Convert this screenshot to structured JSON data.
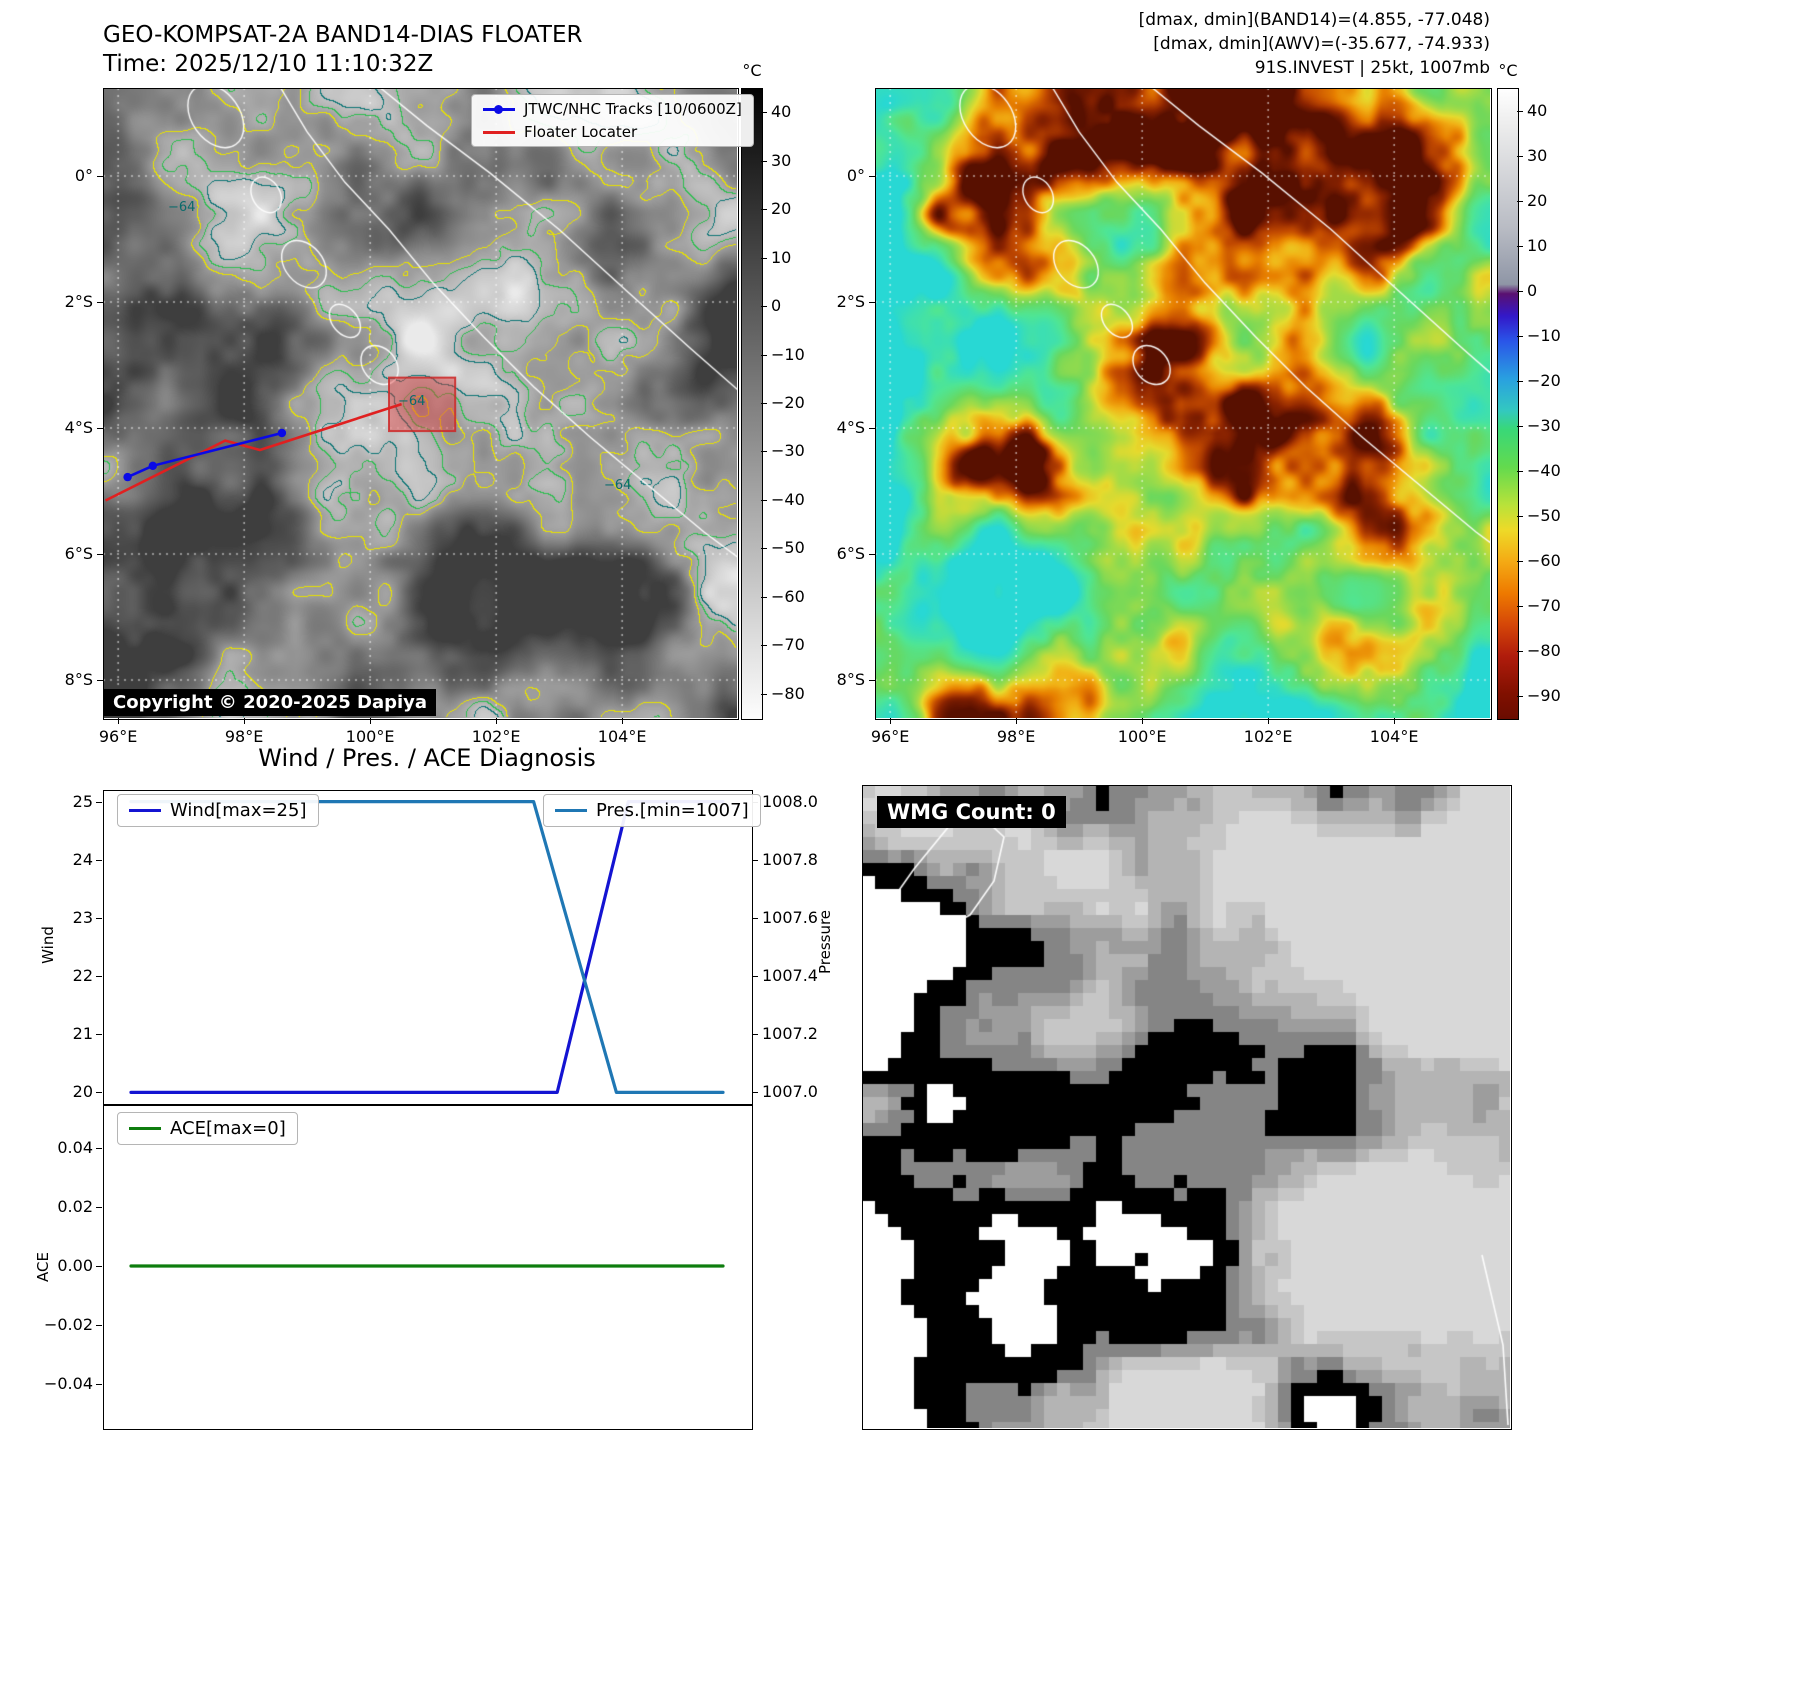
{
  "colors": {
    "wind_line": "#1414d2",
    "pressure_line": "#1f77b4",
    "ace_line": "#0e7d0e",
    "track_blue": "#0a0ae6",
    "track_red": "#e02020",
    "contour_yellow": "#e8e200",
    "contour_green": "#2ebe50",
    "contour_teal": "#0e7676"
  },
  "band14_panel": {
    "title": "GEO-KOMPSAT-2A BAND14-DIAS FLOATER",
    "time": "Time: 2025/12/10 11:10:32Z",
    "legend": {
      "track": "JTWC/NHC Tracks [10/0600Z]",
      "floater": "Floater Locater"
    },
    "copyright": "Copyright © 2020-2025 Dapiya",
    "colorbar_unit": "°C",
    "colorbar_ticks": [
      40,
      30,
      20,
      10,
      0,
      -10,
      -20,
      -30,
      -40,
      -50,
      -60,
      -70,
      -80
    ],
    "x_ticks": [
      "96°E",
      "98°E",
      "100°E",
      "102°E",
      "104°E"
    ],
    "y_ticks": [
      "0°",
      "2°S",
      "4°S",
      "6°S",
      "8°S"
    ],
    "contour_labels": [
      "−64",
      "−64",
      "−64"
    ],
    "tracks": {
      "jtwc": [
        [
          96.15,
          -4.78
        ],
        [
          96.55,
          -4.6
        ],
        [
          98.6,
          -4.08
        ]
      ],
      "floater": [
        [
          95.8,
          -5.15
        ],
        [
          97.7,
          -4.2
        ],
        [
          98.25,
          -4.35
        ],
        [
          100.5,
          -3.62
        ]
      ],
      "floater_box_lonlat": [
        100.3,
        -3.2,
        1.05,
        0.85
      ]
    }
  },
  "awv_panel": {
    "annotation_lines": [
      "[dmax, dmin](BAND14)=(4.855, -77.048)",
      "[dmax, dmin](AWV)=(-35.677, -74.933)",
      "91S.INVEST | 25kt, 1007mb"
    ],
    "colorbar_unit": "°C",
    "colorbar_ticks": [
      40,
      30,
      20,
      10,
      0,
      -10,
      -20,
      -30,
      -40,
      -50,
      -60,
      -70,
      -80,
      -90
    ],
    "x_ticks": [
      "96°E",
      "98°E",
      "100°E",
      "102°E",
      "104°E"
    ],
    "y_ticks": [
      "0°",
      "2°S",
      "4°S",
      "6°S",
      "8°S"
    ]
  },
  "diagnosis": {
    "title": "Wind / Pres. / ACE Diagnosis"
  },
  "wmg_panel": {
    "count_label": "WMG Count: 0"
  },
  "chart_data": [
    {
      "type": "line",
      "title": "Wind / Pres. / ACE Diagnosis",
      "x_axis": {
        "labels_visible": false,
        "range_normalized": [
          0,
          1
        ]
      },
      "series": [
        {
          "name": "Wind[max=25]",
          "axis": "left",
          "color": "#1414d2",
          "x": [
            0,
            0.72,
            0.84,
            1
          ],
          "y": [
            20,
            20,
            25,
            25
          ]
        },
        {
          "name": "Pres.[min=1007]",
          "axis": "right",
          "color": "#1f77b4",
          "x": [
            0,
            0.68,
            0.82,
            1
          ],
          "y": [
            1008,
            1008,
            1007,
            1007
          ]
        }
      ],
      "left_axis": {
        "label": "Wind",
        "ticks": [
          25,
          24,
          23,
          22,
          21,
          20
        ],
        "ylim": [
          19.8,
          25.2
        ]
      },
      "right_axis": {
        "label": "Pressure",
        "ticks": [
          1008.0,
          1007.8,
          1007.6,
          1007.4,
          1007.2,
          1007.0
        ],
        "ylim": [
          1006.96,
          1008.04
        ],
        "tick_decimals": 1
      }
    },
    {
      "type": "line",
      "x_axis": {
        "labels_visible": false,
        "range_normalized": [
          0,
          1
        ]
      },
      "series": [
        {
          "name": "ACE[max=0]",
          "axis": "left",
          "color": "#0e7d0e",
          "x": [
            0,
            1
          ],
          "y": [
            0,
            0
          ]
        }
      ],
      "left_axis": {
        "label": "ACE",
        "ticks": [
          0.04,
          0.02,
          0,
          -0.02,
          -0.04
        ],
        "ylim": [
          -0.055,
          0.055
        ],
        "tick_decimals": 2
      }
    }
  ]
}
